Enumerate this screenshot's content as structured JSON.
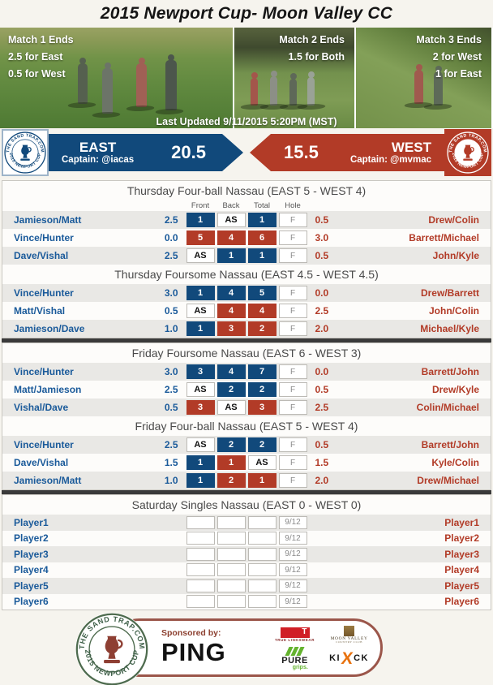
{
  "title": "2015 Newport Cup- Moon Valley CC",
  "photos": [
    {
      "lines": [
        "Match 1 Ends",
        "2.5 for East",
        "0.5 for West"
      ],
      "align": "left"
    },
    {
      "lines": [
        "Match 2 Ends",
        "1.5 for Both"
      ],
      "align": "right"
    },
    {
      "lines": [
        "Match 3 Ends",
        "2 for West",
        "1 for East"
      ],
      "align": "right"
    }
  ],
  "last_updated": "Last Updated 9/11/2015 5:20PM (MST)",
  "banner": {
    "east": {
      "name": "EAST",
      "captain": "Captain: @iacas",
      "score": "20.5"
    },
    "west": {
      "name": "WEST",
      "captain": "Captain: @mvmac",
      "score": "15.5"
    }
  },
  "logo": {
    "top": "THE SAND TRAP.COM",
    "bottom": "2015 NEWPORT CUP"
  },
  "colors": {
    "east_blue": "#11497b",
    "west_red": "#b23b27",
    "stripe": "#e9e8e5",
    "divider": "#3a3a3a"
  },
  "scoreboard": {
    "groups": [
      {
        "sections": [
          {
            "title": "Thursday Four-ball Nassau (EAST 5 - WEST 4)",
            "headers": [
              "Front",
              "Back",
              "Total",
              "Hole"
            ],
            "rows": [
              {
                "east": "Jamieson/Matt",
                "east_pts": "2.5",
                "cells": [
                  {
                    "v": "1",
                    "c": "east"
                  },
                  {
                    "v": "AS",
                    "c": "as"
                  },
                  {
                    "v": "1",
                    "c": "east"
                  }
                ],
                "hole": "F",
                "west_pts": "0.5",
                "west": "Drew/Colin"
              },
              {
                "east": "Vince/Hunter",
                "east_pts": "0.0",
                "cells": [
                  {
                    "v": "5",
                    "c": "west"
                  },
                  {
                    "v": "4",
                    "c": "west"
                  },
                  {
                    "v": "6",
                    "c": "west"
                  }
                ],
                "hole": "F",
                "west_pts": "3.0",
                "west": "Barrett/Michael"
              },
              {
                "east": "Dave/Vishal",
                "east_pts": "2.5",
                "cells": [
                  {
                    "v": "AS",
                    "c": "as"
                  },
                  {
                    "v": "1",
                    "c": "east"
                  },
                  {
                    "v": "1",
                    "c": "east"
                  }
                ],
                "hole": "F",
                "west_pts": "0.5",
                "west": "John/Kyle"
              }
            ]
          },
          {
            "title": "Thursday Foursome Nassau (EAST 4.5 - WEST 4.5)",
            "rows": [
              {
                "east": "Vince/Hunter",
                "east_pts": "3.0",
                "cells": [
                  {
                    "v": "1",
                    "c": "east"
                  },
                  {
                    "v": "4",
                    "c": "east"
                  },
                  {
                    "v": "5",
                    "c": "east"
                  }
                ],
                "hole": "F",
                "west_pts": "0.0",
                "west": "Drew/Barrett"
              },
              {
                "east": "Matt/Vishal",
                "east_pts": "0.5",
                "cells": [
                  {
                    "v": "AS",
                    "c": "as"
                  },
                  {
                    "v": "4",
                    "c": "west"
                  },
                  {
                    "v": "4",
                    "c": "west"
                  }
                ],
                "hole": "F",
                "west_pts": "2.5",
                "west": "John/Colin"
              },
              {
                "east": "Jamieson/Dave",
                "east_pts": "1.0",
                "cells": [
                  {
                    "v": "1",
                    "c": "east"
                  },
                  {
                    "v": "3",
                    "c": "west"
                  },
                  {
                    "v": "2",
                    "c": "west"
                  }
                ],
                "hole": "F",
                "west_pts": "2.0",
                "west": "Michael/Kyle"
              }
            ]
          }
        ]
      },
      {
        "sections": [
          {
            "title": "Friday Foursome Nassau (EAST 6 - WEST 3)",
            "rows": [
              {
                "east": "Vince/Hunter",
                "east_pts": "3.0",
                "cells": [
                  {
                    "v": "3",
                    "c": "east"
                  },
                  {
                    "v": "4",
                    "c": "east"
                  },
                  {
                    "v": "7",
                    "c": "east"
                  }
                ],
                "hole": "F",
                "west_pts": "0.0",
                "west": "Barrett/John"
              },
              {
                "east": "Matt/Jamieson",
                "east_pts": "2.5",
                "cells": [
                  {
                    "v": "AS",
                    "c": "as"
                  },
                  {
                    "v": "2",
                    "c": "east"
                  },
                  {
                    "v": "2",
                    "c": "east"
                  }
                ],
                "hole": "F",
                "west_pts": "0.5",
                "west": "Drew/Kyle"
              },
              {
                "east": "Vishal/Dave",
                "east_pts": "0.5",
                "cells": [
                  {
                    "v": "3",
                    "c": "west"
                  },
                  {
                    "v": "AS",
                    "c": "as"
                  },
                  {
                    "v": "3",
                    "c": "west"
                  }
                ],
                "hole": "F",
                "west_pts": "2.5",
                "west": "Colin/Michael"
              }
            ]
          },
          {
            "title": "Friday Four-ball Nassau (EAST 5 - WEST 4)",
            "rows": [
              {
                "east": "Vince/Hunter",
                "east_pts": "2.5",
                "cells": [
                  {
                    "v": "AS",
                    "c": "as"
                  },
                  {
                    "v": "2",
                    "c": "east"
                  },
                  {
                    "v": "2",
                    "c": "east"
                  }
                ],
                "hole": "F",
                "west_pts": "0.5",
                "west": "Barrett/John"
              },
              {
                "east": "Dave/Vishal",
                "east_pts": "1.5",
                "cells": [
                  {
                    "v": "1",
                    "c": "east"
                  },
                  {
                    "v": "1",
                    "c": "west"
                  },
                  {
                    "v": "AS",
                    "c": "as"
                  }
                ],
                "hole": "F",
                "west_pts": "1.5",
                "west": "Kyle/Colin"
              },
              {
                "east": "Jamieson/Matt",
                "east_pts": "1.0",
                "cells": [
                  {
                    "v": "1",
                    "c": "east"
                  },
                  {
                    "v": "2",
                    "c": "west"
                  },
                  {
                    "v": "1",
                    "c": "west"
                  }
                ],
                "hole": "F",
                "west_pts": "2.0",
                "west": "Drew/Michael"
              }
            ]
          }
        ]
      },
      {
        "saturday": true,
        "sections": [
          {
            "title": "Saturday Singles Nassau (EAST 0 - WEST 0)",
            "rows": [
              {
                "east": "Player1",
                "east_pts": "",
                "cells": [
                  {
                    "v": "",
                    "c": "empty"
                  },
                  {
                    "v": "",
                    "c": "empty"
                  },
                  {
                    "v": "",
                    "c": "empty"
                  }
                ],
                "hole": "9/12",
                "west_pts": "",
                "west": "Player1"
              },
              {
                "east": "Player2",
                "east_pts": "",
                "cells": [
                  {
                    "v": "",
                    "c": "empty"
                  },
                  {
                    "v": "",
                    "c": "empty"
                  },
                  {
                    "v": "",
                    "c": "empty"
                  }
                ],
                "hole": "9/12",
                "west_pts": "",
                "west": "Player2"
              },
              {
                "east": "Player3",
                "east_pts": "",
                "cells": [
                  {
                    "v": "",
                    "c": "empty"
                  },
                  {
                    "v": "",
                    "c": "empty"
                  },
                  {
                    "v": "",
                    "c": "empty"
                  }
                ],
                "hole": "9/12",
                "west_pts": "",
                "west": "Player3"
              },
              {
                "east": "Player4",
                "east_pts": "",
                "cells": [
                  {
                    "v": "",
                    "c": "empty"
                  },
                  {
                    "v": "",
                    "c": "empty"
                  },
                  {
                    "v": "",
                    "c": "empty"
                  }
                ],
                "hole": "9/12",
                "west_pts": "",
                "west": "Player4"
              },
              {
                "east": "Player5",
                "east_pts": "",
                "cells": [
                  {
                    "v": "",
                    "c": "empty"
                  },
                  {
                    "v": "",
                    "c": "empty"
                  },
                  {
                    "v": "",
                    "c": "empty"
                  }
                ],
                "hole": "9/12",
                "west_pts": "",
                "west": "Player5"
              },
              {
                "east": "Player6",
                "east_pts": "",
                "cells": [
                  {
                    "v": "",
                    "c": "empty"
                  },
                  {
                    "v": "",
                    "c": "empty"
                  },
                  {
                    "v": "",
                    "c": "empty"
                  }
                ],
                "hole": "9/12",
                "west_pts": "",
                "west": "Player6"
              }
            ]
          }
        ]
      }
    ]
  },
  "footer": {
    "sponsored_by": "Sponsored by:",
    "ping": "PING",
    "true_letter": "T",
    "true_caption": "TRUE LINKSWEAR",
    "moon_valley": "MOON VALLEY",
    "moon_valley_sub": "COUNTRY CLUB",
    "pure": "PURE",
    "pure_sub": "grips.",
    "kick_left": "KI",
    "kick_x": "X",
    "kick_right": "CK"
  }
}
